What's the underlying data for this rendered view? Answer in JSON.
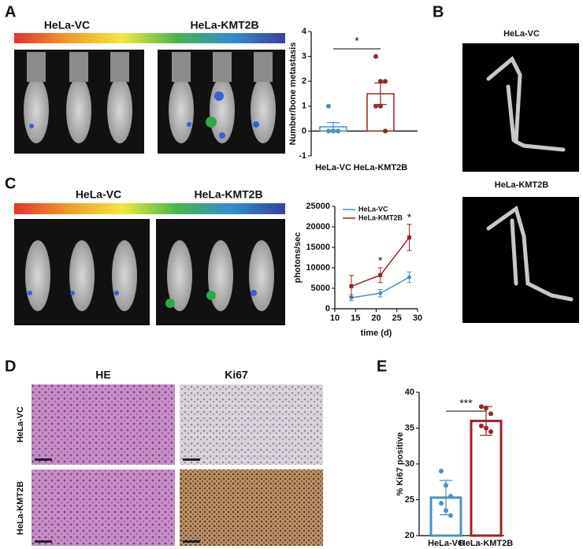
{
  "panels": {
    "labels": [
      "A",
      "B",
      "C",
      "D",
      "E"
    ],
    "a": {
      "groups": [
        "HeLa-VC",
        "HeLa-KMT2B"
      ]
    },
    "b": {
      "groups": [
        "HeLa-VC",
        "HeLa-KMT2B"
      ]
    },
    "c": {
      "groups": [
        "HeLa-VC",
        "HeLa-KMT2B"
      ]
    },
    "d": {
      "columns": [
        "HE",
        "Ki67"
      ],
      "rows": [
        "HeLa-VC",
        "HeLa-KMT2B"
      ]
    }
  },
  "chart_data": [
    {
      "type": "bar",
      "ylabel": "Number/bone metastasis",
      "categories": [
        "HeLa-VC",
        "HeLa-KMT2B"
      ],
      "values": [
        0.17,
        1.5
      ],
      "errors": [
        0.17,
        0.43
      ],
      "points": [
        [
          1,
          0,
          0,
          0,
          0,
          0
        ],
        [
          3,
          2,
          2,
          1,
          1,
          0
        ]
      ],
      "colors": [
        "#4a90c8",
        "#9b2226"
      ],
      "ylim": [
        -1,
        4
      ],
      "yticks": [
        -1,
        0,
        1,
        2,
        3,
        4
      ],
      "significance": "*"
    },
    {
      "type": "line",
      "xlabel": "time (d)",
      "ylabel": "photons/sec",
      "x": [
        14,
        21,
        28
      ],
      "series": [
        {
          "name": "HeLa-VC",
          "color": "#4a90c8",
          "values": [
            2700,
            3800,
            7700
          ],
          "errors": [
            700,
            900,
            1300
          ]
        },
        {
          "name": "HeLa-KMT2B",
          "color": "#9b2226",
          "values": [
            5500,
            8200,
            17400
          ],
          "errors": [
            2600,
            1800,
            3200
          ]
        }
      ],
      "annotations": [
        null,
        "*",
        "*"
      ],
      "xlim": [
        10,
        30
      ],
      "xticks": [
        10,
        15,
        20,
        25,
        30
      ],
      "ylim": [
        0,
        25000
      ],
      "yticks": [
        0,
        5000,
        10000,
        15000,
        20000,
        25000
      ],
      "legend": "upper left"
    },
    {
      "type": "bar",
      "ylabel": "% Ki67 positive",
      "categories": [
        "HeLa-VC",
        "HeLa-KMT2B"
      ],
      "values": [
        25.3,
        36
      ],
      "errors": [
        2.4,
        2
      ],
      "points": [
        [
          29,
          27,
          25.5,
          24.5,
          23.5,
          22.8
        ],
        [
          38,
          37.8,
          37,
          35.3,
          35,
          34.5
        ]
      ],
      "colors": [
        "#4a90c8",
        "#9b2226"
      ],
      "ylim": [
        20,
        40
      ],
      "yticks": [
        20,
        25,
        30,
        35,
        40
      ],
      "significance": "***"
    }
  ]
}
